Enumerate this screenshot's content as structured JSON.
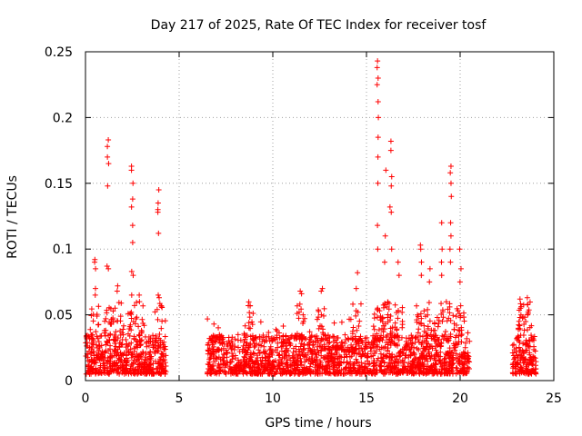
{
  "chart_data": {
    "type": "scatter",
    "title": "Day 217 of 2025, Rate Of TEC Index for receiver tosf",
    "xlabel": "GPS time / hours",
    "ylabel": "ROTI / TECUs",
    "xlim": [
      0,
      25
    ],
    "ylim": [
      0,
      0.25
    ],
    "x_ticks": [
      0,
      5,
      10,
      15,
      20,
      25
    ],
    "x_tick_labels": [
      "0",
      "5",
      "10",
      "15",
      "20",
      "25"
    ],
    "y_ticks": [
      0,
      0.05,
      0.1,
      0.15,
      0.2,
      0.25
    ],
    "y_tick_labels": [
      "0",
      "0.05",
      "0.1",
      "0.15",
      "0.2",
      "0.25"
    ],
    "grid": true,
    "marker": "+",
    "color": "#ff0000",
    "series": [
      {
        "name": "ROTI",
        "data_segments": [
          {
            "x_start": 0.0,
            "x_end": 4.3,
            "y_base_min": 0.005,
            "y_base_max": 0.035
          },
          {
            "x_start": 6.5,
            "x_end": 20.5,
            "y_base_min": 0.005,
            "y_base_max": 0.035
          },
          {
            "x_start": 22.8,
            "x_end": 24.1,
            "y_base_min": 0.005,
            "y_base_max": 0.035
          }
        ],
        "peaks": [
          {
            "x": 0.5,
            "y": [
              0.092,
              0.09,
              0.085,
              0.07,
              0.065
            ]
          },
          {
            "x": 1.2,
            "y": [
              0.183,
              0.178,
              0.17,
              0.165,
              0.148,
              0.087,
              0.085
            ]
          },
          {
            "x": 1.7,
            "y": [
              0.072,
              0.068
            ]
          },
          {
            "x": 2.5,
            "y": [
              0.163,
              0.16,
              0.15,
              0.138,
              0.132,
              0.118,
              0.105,
              0.083,
              0.08,
              0.065
            ]
          },
          {
            "x": 2.9,
            "y": [
              0.065,
              0.06
            ]
          },
          {
            "x": 3.9,
            "y": [
              0.145,
              0.135,
              0.13,
              0.128,
              0.112,
              0.065,
              0.063
            ]
          },
          {
            "x": 8.7,
            "y": [
              0.044,
              0.04
            ]
          },
          {
            "x": 11.5,
            "y": [
              0.068,
              0.066
            ]
          },
          {
            "x": 12.6,
            "y": [
              0.07,
              0.068
            ]
          },
          {
            "x": 14.5,
            "y": [
              0.082,
              0.07
            ]
          },
          {
            "x": 15.6,
            "y": [
              0.243,
              0.238,
              0.23,
              0.225,
              0.212,
              0.2,
              0.185,
              0.17,
              0.15,
              0.118,
              0.1
            ]
          },
          {
            "x": 16.0,
            "y": [
              0.16,
              0.11,
              0.09
            ]
          },
          {
            "x": 16.3,
            "y": [
              0.182,
              0.175,
              0.155,
              0.148,
              0.132,
              0.128,
              0.1
            ]
          },
          {
            "x": 16.7,
            "y": [
              0.09,
              0.08
            ]
          },
          {
            "x": 17.9,
            "y": [
              0.103,
              0.1,
              0.09,
              0.08
            ]
          },
          {
            "x": 18.4,
            "y": [
              0.085,
              0.075
            ]
          },
          {
            "x": 19.0,
            "y": [
              0.12,
              0.1,
              0.09,
              0.08
            ]
          },
          {
            "x": 19.5,
            "y": [
              0.163,
              0.158,
              0.15,
              0.14,
              0.12,
              0.11,
              0.1,
              0.09
            ]
          },
          {
            "x": 20.0,
            "y": [
              0.1,
              0.085,
              0.075
            ]
          },
          {
            "x": 23.2,
            "y": [
              0.062,
              0.055,
              0.05
            ]
          },
          {
            "x": 23.6,
            "y": [
              0.063,
              0.058,
              0.05
            ]
          }
        ]
      }
    ]
  }
}
